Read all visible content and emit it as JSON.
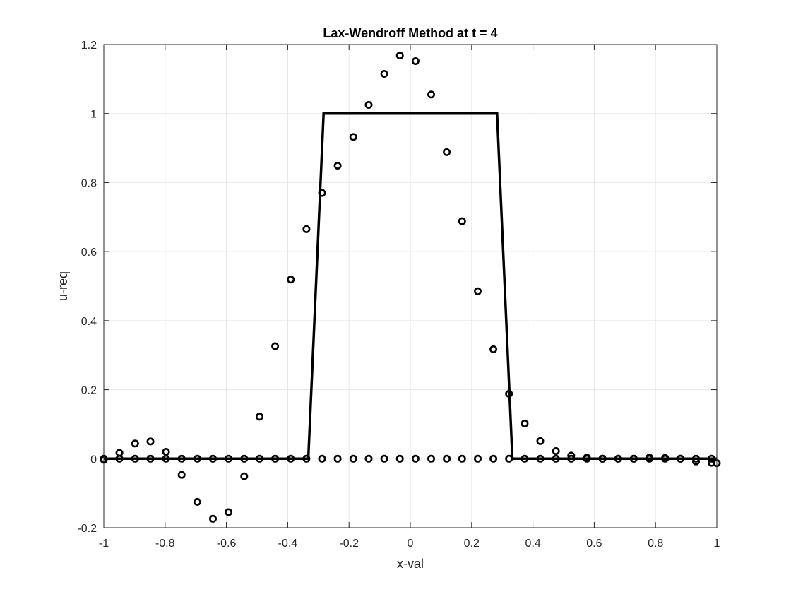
{
  "chart_data": {
    "type": "scatter",
    "title": "Lax-Wendroff Method at t = 4",
    "xlabel": "x-val",
    "ylabel": "u-req",
    "xlim": [
      -1,
      1
    ],
    "ylim": [
      -0.2,
      1.2
    ],
    "xticks": [
      -1,
      -0.8,
      -0.6,
      -0.4,
      -0.2,
      0,
      0.2,
      0.4,
      0.6,
      0.8,
      1
    ],
    "xtick_labels": [
      "-1",
      "-0.8",
      "-0.6",
      "-0.4",
      "-0.2",
      "0",
      "0.2",
      "0.4",
      "0.6",
      "0.8",
      "1"
    ],
    "yticks": [
      -0.2,
      0,
      0.2,
      0.4,
      0.6,
      0.8,
      1,
      1.2
    ],
    "ytick_labels": [
      "-0.2",
      "0",
      "0.2",
      "0.4",
      "0.6",
      "0.8",
      "1",
      "1.2"
    ],
    "grid": true,
    "legend": "none",
    "colors": {
      "series": "#000000",
      "grid": "#e6e6e6",
      "axes": "#262626"
    },
    "series": [
      {
        "type": "line",
        "x": [
          -1,
          -0.333,
          -0.283,
          0.283,
          0.333,
          1
        ],
        "y": [
          0,
          0,
          1,
          1,
          0,
          0
        ]
      },
      {
        "type": "scatter",
        "marker": "circle",
        "x": [
          -1,
          -0.949,
          -0.898,
          -0.848,
          -0.797,
          -0.746,
          -0.695,
          -0.644,
          -0.593,
          -0.542,
          -0.492,
          -0.441,
          -0.39,
          -0.339,
          -0.288,
          -0.237,
          -0.186,
          -0.136,
          -0.085,
          -0.034,
          0.017,
          0.068,
          0.119,
          0.169,
          0.22,
          0.271,
          0.322,
          0.373,
          0.424,
          0.475,
          0.525,
          0.576,
          0.627,
          0.678,
          0.729,
          0.78,
          0.831,
          0.881,
          0.932,
          0.983
        ],
        "y": [
          0,
          0.017,
          0.044,
          0.05,
          0.02,
          -0.047,
          -0.125,
          -0.174,
          -0.155,
          -0.051,
          0.122,
          0.326,
          0.519,
          0.665,
          0.77,
          0.849,
          0.932,
          1.025,
          1.115,
          1.168,
          1.152,
          1.055,
          0.888,
          0.688,
          0.485,
          0.317,
          0.188,
          0.102,
          0.051,
          0.022,
          0.009,
          0.003,
          0,
          0,
          0,
          0.003,
          0.002,
          0,
          -0.008,
          -0.012
        ]
      },
      {
        "type": "scatter",
        "marker": "circle",
        "x": [
          -1,
          -0.949,
          -0.898,
          -0.848,
          -0.797,
          -0.746,
          -0.695,
          -0.644,
          -0.593,
          -0.542,
          -0.492,
          -0.441,
          -0.39,
          -0.339,
          -0.288,
          -0.237,
          -0.186,
          -0.136,
          -0.085,
          -0.034,
          0.017,
          0.068,
          0.119,
          0.169,
          0.22,
          0.271,
          0.322,
          0.373,
          0.424,
          0.475,
          0.525,
          0.576,
          0.627,
          0.678,
          0.729,
          0.78,
          0.831,
          0.881,
          0.932,
          0.983,
          1
        ],
        "y": [
          -0.003,
          0,
          0,
          0,
          0,
          0,
          0,
          0,
          0,
          0,
          0,
          0,
          0,
          0,
          0,
          0,
          0,
          0,
          0,
          0,
          0,
          0,
          0,
          0,
          0,
          0,
          0,
          0,
          0,
          0,
          0,
          0,
          0,
          0,
          0,
          0,
          0,
          0,
          0,
          0,
          -0.013
        ]
      }
    ]
  }
}
